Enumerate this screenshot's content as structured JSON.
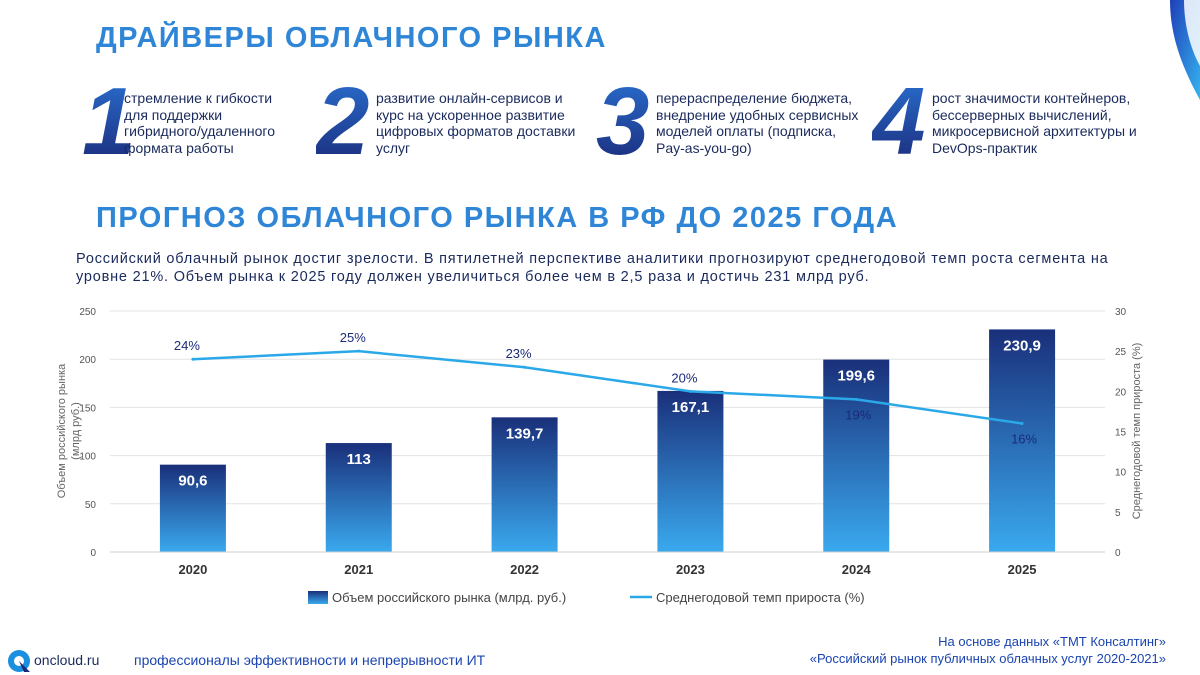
{
  "drivers_title": "ДРАЙВЕРЫ ОБЛАЧНОГО РЫНКА",
  "drivers": [
    {
      "num": "1",
      "text": "стремление к гибкости для поддержки гибридного/удаленного формата работы"
    },
    {
      "num": "2",
      "text": "развитие онлайн-сервисов и курс на ускоренное развитие цифровых форматов доставки услуг"
    },
    {
      "num": "3",
      "text": "перераспределение бюджета, внедрение удобных сервисных моделей оплаты (подписка, Pay-as-you-go)"
    },
    {
      "num": "4",
      "text": "рост значимости контейнеров, бессерверных вычислений, микросервисной архитектуры и DevOps-практик"
    }
  ],
  "forecast_title": "ПРОГНОЗ ОБЛАЧНОГО РЫНКА В РФ ДО 2025 ГОДА",
  "intro": "Российский облачный рынок достиг зрелости. В пятилетней перспективе аналитики прогнозируют среднегодовой темп роста сегмента на уровне 21%. Объем рынка к 2025 году должен увеличиться более чем в 2,5 раза и достичь 231 млрд руб.",
  "chart_data": {
    "type": "bar",
    "categories": [
      "2020",
      "2021",
      "2022",
      "2023",
      "2024",
      "2025"
    ],
    "series": [
      {
        "name": "Объем российского рынка (млрд. руб.)",
        "type": "bar",
        "axis": "left",
        "values": [
          90.6,
          113,
          139.7,
          167.1,
          199.6,
          230.9
        ],
        "labels": [
          "90,6",
          "113",
          "139,7",
          "167,1",
          "199,6",
          "230,9"
        ]
      },
      {
        "name": "Среднегодовой темп прироста (%)",
        "type": "line",
        "axis": "right",
        "values": [
          24,
          25,
          23,
          20,
          19,
          16
        ],
        "labels": [
          "24%",
          "25%",
          "23%",
          "20%",
          "19%",
          "16%"
        ]
      }
    ],
    "ylabel": "Объем российского рынка (млрд руб.)",
    "y2label": "Среднегодовой темп прироста (%)",
    "ylim": [
      0,
      250
    ],
    "y_ticks": [
      "0",
      "50",
      "100",
      "150",
      "200",
      "250"
    ],
    "y2lim": [
      0,
      30
    ],
    "y2_ticks": [
      "0",
      "5",
      "10",
      "15",
      "20",
      "25",
      "30"
    ],
    "grid": true,
    "legend_position": "bottom",
    "colors": {
      "bar_top": "#1a2f7a",
      "bar_bottom": "#3aa9ee",
      "line": "#2aa8e8"
    }
  },
  "footer": {
    "brand": "oncloud.ru",
    "tagline": "профессионалы эффективности и непрерывности ИТ",
    "source_line1": "На основе данных «ТМТ Консалтинг»",
    "source_line2": "«Российский рынок публичных облачных услуг 2020-2021»"
  }
}
